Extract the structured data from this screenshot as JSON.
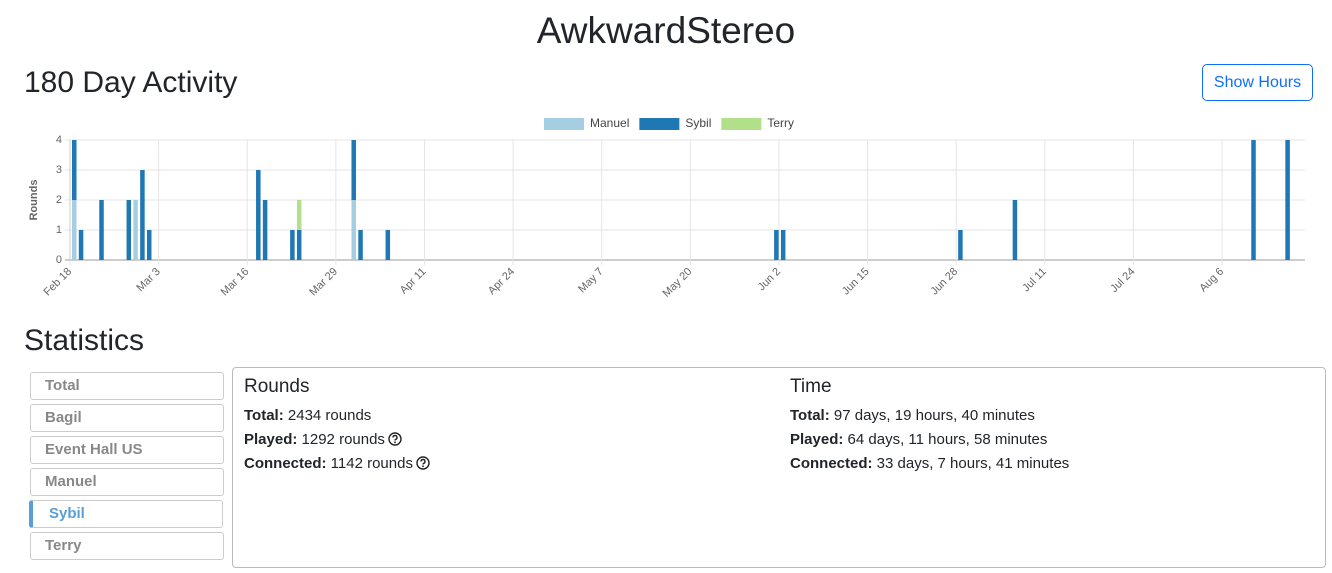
{
  "header": {
    "title": "AwkwardStereo"
  },
  "activity": {
    "title": "180 Day Activity",
    "button": "Show Hours"
  },
  "chart_data": {
    "type": "stacked-bar",
    "ylabel": "Rounds",
    "x": [
      "Feb 18",
      "Feb 19",
      "Feb 22",
      "Feb 26",
      "Feb 27",
      "Feb 28",
      "Mar 1",
      "Mar 17",
      "Mar 18",
      "Mar 22",
      "Mar 23",
      "Mar 31",
      "Apr 1",
      "Apr 5",
      "Jun 1",
      "Jun 2",
      "Jun 28",
      "Jul 6",
      "Aug 10",
      "Aug 15"
    ],
    "series": [
      {
        "name": "Manuel",
        "color": "#a6cee3",
        "values": [
          2,
          0,
          0,
          0,
          2,
          0,
          0,
          0,
          0,
          0,
          0,
          2,
          0,
          0,
          0,
          0,
          0,
          0,
          0,
          0
        ]
      },
      {
        "name": "Sybil",
        "color": "#1f78b4",
        "values": [
          2,
          1,
          2,
          2,
          0,
          3,
          1,
          3,
          2,
          1,
          1,
          2,
          1,
          1,
          1,
          1,
          1,
          2,
          4,
          4
        ]
      },
      {
        "name": "Terry",
        "color": "#b2df8a",
        "values": [
          0,
          0,
          0,
          0,
          0,
          0,
          0,
          0,
          0,
          0,
          1,
          0,
          0,
          0,
          0,
          0,
          0,
          0,
          0,
          0
        ]
      }
    ],
    "xticks": [
      "Feb 18",
      "Mar 3",
      "Mar 16",
      "Mar 29",
      "Apr 11",
      "Apr 24",
      "May 7",
      "May 20",
      "Jun 2",
      "Jun 15",
      "Jun 28",
      "Jul 11",
      "Jul 24",
      "Aug 6"
    ],
    "ylim": [
      0,
      4
    ],
    "yticks": [
      0,
      1,
      2,
      3,
      4
    ],
    "grid": true,
    "legend": "top"
  },
  "statistics": {
    "title": "Statistics",
    "servers": [
      "Total",
      "Bagil",
      "Event Hall US",
      "Manuel",
      "Sybil",
      "Terry"
    ],
    "selected_index": 4,
    "rounds": {
      "title": "Rounds",
      "rows": [
        {
          "label": "Total:",
          "value": "2434 rounds"
        },
        {
          "label": "Played:",
          "value": "1292 rounds"
        },
        {
          "label": "Connected:",
          "value": "1142 rounds"
        }
      ]
    },
    "time": {
      "title": "Time",
      "rows": [
        {
          "label": "Total:",
          "value": "97 days, 19 hours, 40 minutes"
        },
        {
          "label": "Played:",
          "value": "64 days, 11 hours, 58 minutes"
        },
        {
          "label": "Connected:",
          "value": "33 days, 7 hours, 41 minutes"
        }
      ]
    }
  }
}
